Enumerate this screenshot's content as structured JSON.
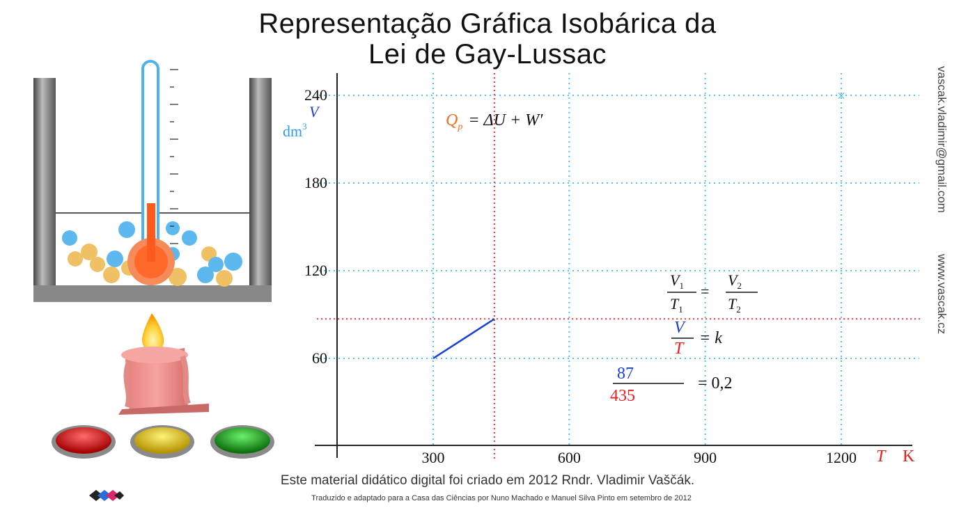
{
  "title_line1": "Representação Gráfica Isobárica da",
  "title_line2": "Lei de Gay-Lussac",
  "side_email": "vascak.vladimir@gmail.com",
  "side_site": "www.vascak.cz",
  "credit_main": "Este material didático digital foi criado em 2012 Rndr. Vladimir Vaščák.",
  "credit_sub": "Traduzido e adaptado para a Casa das Ciências por Nuno Machado e Manuel Silva Pinto em setembro de 2012",
  "buttons": {
    "red": "red-button",
    "yellow": "yellow-button",
    "green": "green-button"
  },
  "equations": {
    "q_symbol": "Q",
    "q_sub": "p",
    "q_rhs": "= ΔU + W′",
    "v1": "V",
    "v1_sub": "1",
    "t1": "T",
    "t1_sub": "1",
    "v2": "V",
    "v2_sub": "2",
    "t2": "T",
    "t2_sub": "2",
    "eq": "=",
    "v": "V",
    "t": "T",
    "k": "= k",
    "numerator": "87",
    "denominator": "435",
    "ratio": "= 0,2"
  },
  "chart_data": {
    "type": "line",
    "xlabel": "T",
    "xunit": "K",
    "ylabel": "V",
    "yunit": "dm",
    "yunit_exp": "3",
    "x_ticks": [
      300,
      600,
      900,
      1200
    ],
    "y_ticks": [
      60,
      120,
      180,
      240
    ],
    "xlim": [
      100,
      1350
    ],
    "ylim": [
      0,
      255
    ],
    "grid": true,
    "series": [
      {
        "values": [
          {
            "x": 300,
            "y": 60
          },
          {
            "x": 435,
            "y": 87
          }
        ],
        "color": "#1a3fd8"
      }
    ],
    "current_point": {
      "x": 435,
      "y": 87
    },
    "marker": {
      "x": 1200,
      "y": 240,
      "symbol": "×"
    },
    "colors": {
      "grid": "#4fc3f7",
      "crosshair": "#ff3333",
      "axis": "#222222"
    }
  }
}
